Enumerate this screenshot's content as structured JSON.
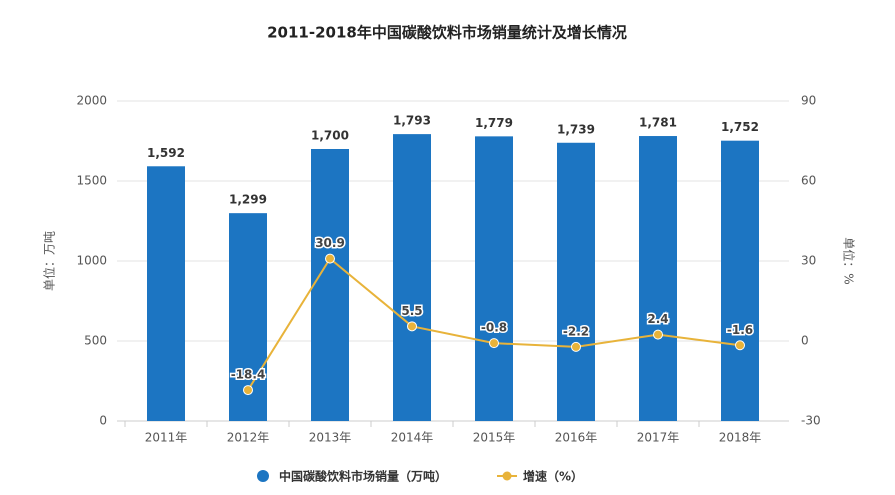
{
  "chart_data": {
    "type": "bar",
    "title": "2011-2018年中国碳酸饮料市场销量统计及增长情况",
    "y_label": "单位：万吨",
    "y2_label": "单位：%",
    "categories": [
      "2011年",
      "2012年",
      "2013年",
      "2014年",
      "2015年",
      "2016年",
      "2017年",
      "2018年"
    ],
    "series": [
      {
        "name": "中国碳酸饮料市场销量（万吨）",
        "type": "bar",
        "color": "#1c75c2",
        "values": [
          1592,
          1299,
          1700,
          1793,
          1779,
          1739,
          1781,
          1752
        ],
        "value_labels": [
          "1,592",
          "1,299",
          "1,700",
          "1,793",
          "1,779",
          "1,739",
          "1,781",
          "1,752"
        ]
      },
      {
        "name": "增速（%）",
        "type": "line",
        "axis": "y2",
        "color": "#e8b33a",
        "values": [
          null,
          -18.4,
          30.9,
          5.5,
          -0.8,
          -2.2,
          2.4,
          -1.6
        ]
      }
    ],
    "ylim": [
      0,
      2000
    ],
    "yticks": [
      0,
      500,
      1000,
      1500,
      2000
    ],
    "y2lim": [
      -30,
      90
    ],
    "y2ticks": [
      -30,
      0,
      30,
      60,
      90
    ],
    "grid": true
  }
}
